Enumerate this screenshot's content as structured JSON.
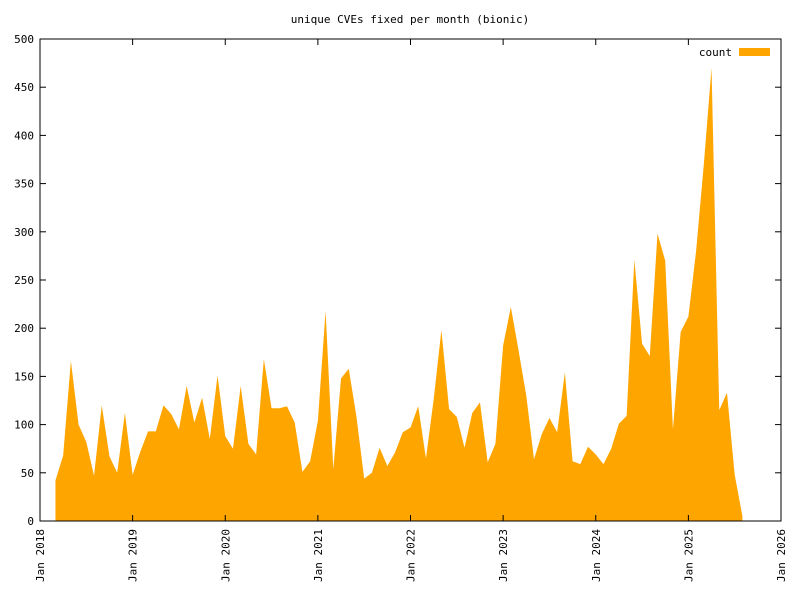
{
  "chart_data": {
    "type": "area",
    "title": "unique CVEs fixed per month (bionic)",
    "xlabel": "",
    "ylabel": "",
    "xlim": [
      "2018-01",
      "2026-01"
    ],
    "ylim": [
      0,
      500
    ],
    "x_ticks": [
      "Jan 2018",
      "Jan 2019",
      "Jan 2020",
      "Jan 2021",
      "Jan 2022",
      "Jan 2023",
      "Jan 2024",
      "Jan 2025",
      "Jan 2026"
    ],
    "y_ticks": [
      0,
      50,
      100,
      150,
      200,
      250,
      300,
      350,
      400,
      450,
      500
    ],
    "legend": {
      "position": "top-right",
      "entries": [
        "count"
      ]
    },
    "grid": false,
    "series_color": "#FFA500",
    "series": [
      {
        "name": "count",
        "points": [
          [
            "2018-03",
            42
          ],
          [
            "2018-04",
            68
          ],
          [
            "2018-05",
            166
          ],
          [
            "2018-06",
            100
          ],
          [
            "2018-07",
            82
          ],
          [
            "2018-08",
            47
          ],
          [
            "2018-09",
            120
          ],
          [
            "2018-10",
            67
          ],
          [
            "2018-11",
            50
          ],
          [
            "2018-12",
            112
          ],
          [
            "2019-01",
            48
          ],
          [
            "2019-02",
            72
          ],
          [
            "2019-03",
            93
          ],
          [
            "2019-04",
            93
          ],
          [
            "2019-05",
            120
          ],
          [
            "2019-06",
            111
          ],
          [
            "2019-07",
            95
          ],
          [
            "2019-08",
            140
          ],
          [
            "2019-09",
            102
          ],
          [
            "2019-10",
            128
          ],
          [
            "2019-11",
            85
          ],
          [
            "2019-12",
            151
          ],
          [
            "2020-01",
            88
          ],
          [
            "2020-02",
            75
          ],
          [
            "2020-03",
            140
          ],
          [
            "2020-04",
            80
          ],
          [
            "2020-05",
            69
          ],
          [
            "2020-06",
            168
          ],
          [
            "2020-07",
            117
          ],
          [
            "2020-08",
            117
          ],
          [
            "2020-09",
            119
          ],
          [
            "2020-10",
            102
          ],
          [
            "2020-11",
            51
          ],
          [
            "2020-12",
            62
          ],
          [
            "2021-01",
            104
          ],
          [
            "2021-02",
            218
          ],
          [
            "2021-03",
            54
          ],
          [
            "2021-04",
            148
          ],
          [
            "2021-05",
            158
          ],
          [
            "2021-06",
            108
          ],
          [
            "2021-07",
            44
          ],
          [
            "2021-08",
            50
          ],
          [
            "2021-09",
            76
          ],
          [
            "2021-10",
            57
          ],
          [
            "2021-11",
            71
          ],
          [
            "2021-12",
            92
          ],
          [
            "2022-01",
            97
          ],
          [
            "2022-02",
            119
          ],
          [
            "2022-03",
            65
          ],
          [
            "2022-04",
            126
          ],
          [
            "2022-05",
            198
          ],
          [
            "2022-06",
            116
          ],
          [
            "2022-07",
            108
          ],
          [
            "2022-08",
            76
          ],
          [
            "2022-09",
            112
          ],
          [
            "2022-10",
            123
          ],
          [
            "2022-11",
            61
          ],
          [
            "2022-12",
            80
          ],
          [
            "2023-01",
            182
          ],
          [
            "2023-02",
            222
          ],
          [
            "2023-03",
            177
          ],
          [
            "2023-04",
            130
          ],
          [
            "2023-05",
            64
          ],
          [
            "2023-06",
            90
          ],
          [
            "2023-07",
            107
          ],
          [
            "2023-08",
            92
          ],
          [
            "2023-09",
            154
          ],
          [
            "2023-10",
            62
          ],
          [
            "2023-11",
            59
          ],
          [
            "2023-12",
            77
          ],
          [
            "2024-01",
            69
          ],
          [
            "2024-02",
            59
          ],
          [
            "2024-03",
            75
          ],
          [
            "2024-04",
            101
          ],
          [
            "2024-05",
            109
          ],
          [
            "2024-06",
            271
          ],
          [
            "2024-07",
            184
          ],
          [
            "2024-08",
            171
          ],
          [
            "2024-09",
            298
          ],
          [
            "2024-10",
            270
          ],
          [
            "2024-11",
            95
          ],
          [
            "2024-12",
            196
          ],
          [
            "2025-01",
            212
          ],
          [
            "2025-02",
            280
          ],
          [
            "2025-03",
            370
          ],
          [
            "2025-04",
            470
          ],
          [
            "2025-05",
            115
          ],
          [
            "2025-06",
            133
          ],
          [
            "2025-07",
            48
          ],
          [
            "2025-08",
            5
          ]
        ]
      }
    ]
  }
}
